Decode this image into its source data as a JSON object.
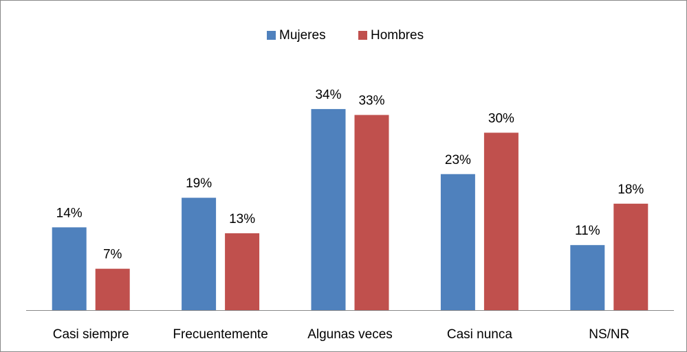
{
  "chart_data": {
    "type": "bar",
    "categories": [
      "Casi siempre",
      "Frecuentemente",
      "Algunas veces",
      "Casi nunca",
      "NS/NR"
    ],
    "series": [
      {
        "name": "Mujeres",
        "color": "#4f81bd",
        "values": [
          14,
          19,
          34,
          23,
          11
        ],
        "value_labels": [
          "14%",
          "19%",
          "34%",
          "23%",
          "11%"
        ]
      },
      {
        "name": "Hombres",
        "color": "#c0504d",
        "values": [
          7,
          13,
          33,
          30,
          18
        ],
        "value_labels": [
          "7%",
          "13%",
          "33%",
          "30%",
          "18%"
        ]
      }
    ],
    "legend": "top"
  }
}
